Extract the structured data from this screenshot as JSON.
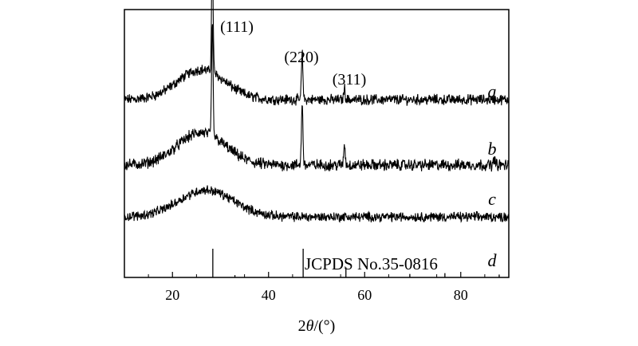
{
  "chart_data": {
    "type": "line",
    "title": "",
    "xlabel": "2θ/(°)",
    "xlabel_parts": [
      "2",
      "θ",
      "/(°)"
    ],
    "ylabel": "",
    "xlim": [
      10,
      90
    ],
    "x_ticks": [
      20,
      40,
      60,
      80
    ],
    "grid": false,
    "legend": "none",
    "series": [
      {
        "name": "a",
        "baseline": 0.25,
        "hump": {
          "center": 26,
          "width": 7,
          "height": 0.13
        },
        "peaks": [
          {
            "x": 28.3,
            "height": 0.55
          },
          {
            "x": 47.0,
            "height": 0.2
          },
          {
            "x": 55.8,
            "height": 0.05
          }
        ],
        "noise": 0.018
      },
      {
        "name": "b",
        "baseline": 0.0,
        "hump": {
          "center": 26,
          "width": 7,
          "height": 0.14
        },
        "peaks": [
          {
            "x": 28.3,
            "height": 0.48
          },
          {
            "x": 47.0,
            "height": 0.27
          },
          {
            "x": 55.8,
            "height": 0.09
          },
          {
            "x": 87.0,
            "height": 0.03
          }
        ],
        "noise": 0.02
      },
      {
        "name": "c",
        "baseline": -0.2,
        "hump": {
          "center": 27,
          "width": 8,
          "height": 0.14
        },
        "peaks": [],
        "noise": 0.02
      }
    ],
    "reference": {
      "name": "d",
      "label": "JCPDS No.35-0816",
      "lines": [
        {
          "x": 28.4,
          "intensity": 1.0
        },
        {
          "x": 33.0,
          "intensity": 0.08
        },
        {
          "x": 47.2,
          "intensity": 1.0
        },
        {
          "x": 56.1,
          "intensity": 0.35
        },
        {
          "x": 69.4,
          "intensity": 0.12
        },
        {
          "x": 76.7,
          "intensity": 0.15
        },
        {
          "x": 88.0,
          "intensity": 0.1
        }
      ]
    },
    "annotations": [
      {
        "text": "(111)",
        "x": 28.4,
        "series": "a"
      },
      {
        "text": "(220)",
        "x": 47.0,
        "series": "a"
      },
      {
        "text": "(311)",
        "x": 55.8,
        "series": "a"
      }
    ]
  }
}
